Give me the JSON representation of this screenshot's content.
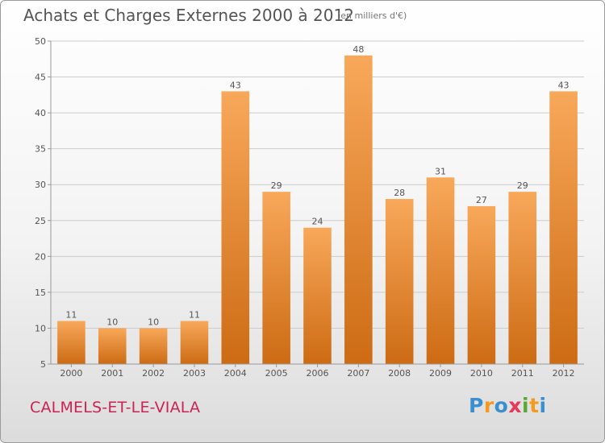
{
  "header": {
    "title": "Achats et Charges Externes 2000 à 2012",
    "subtitle": "(en milliers d'€)"
  },
  "footer": {
    "commune": "CALMELS-ET-LE-VIALA",
    "logo": "Proxiti"
  },
  "colors": {
    "bar_top": "#f8a85a",
    "bar_bottom": "#cd6b14",
    "grid": "#cccccc",
    "axis": "#999999",
    "text": "#555555",
    "commune": "#cc2255"
  },
  "chart_data": {
    "type": "bar",
    "title": "Achats et Charges Externes 2000 à 2012",
    "subtitle": "(en milliers d'€)",
    "xlabel": "",
    "ylabel": "",
    "categories": [
      "2000",
      "2001",
      "2002",
      "2003",
      "2004",
      "2005",
      "2006",
      "2007",
      "2008",
      "2009",
      "2010",
      "2011",
      "2012"
    ],
    "values": [
      11,
      10,
      10,
      11,
      43,
      29,
      24,
      48,
      28,
      31,
      27,
      29,
      43
    ],
    "ylim": [
      5,
      50
    ],
    "yticks": [
      5,
      10,
      15,
      20,
      25,
      30,
      35,
      40,
      45,
      50
    ],
    "grid": true,
    "data_labels": true
  }
}
